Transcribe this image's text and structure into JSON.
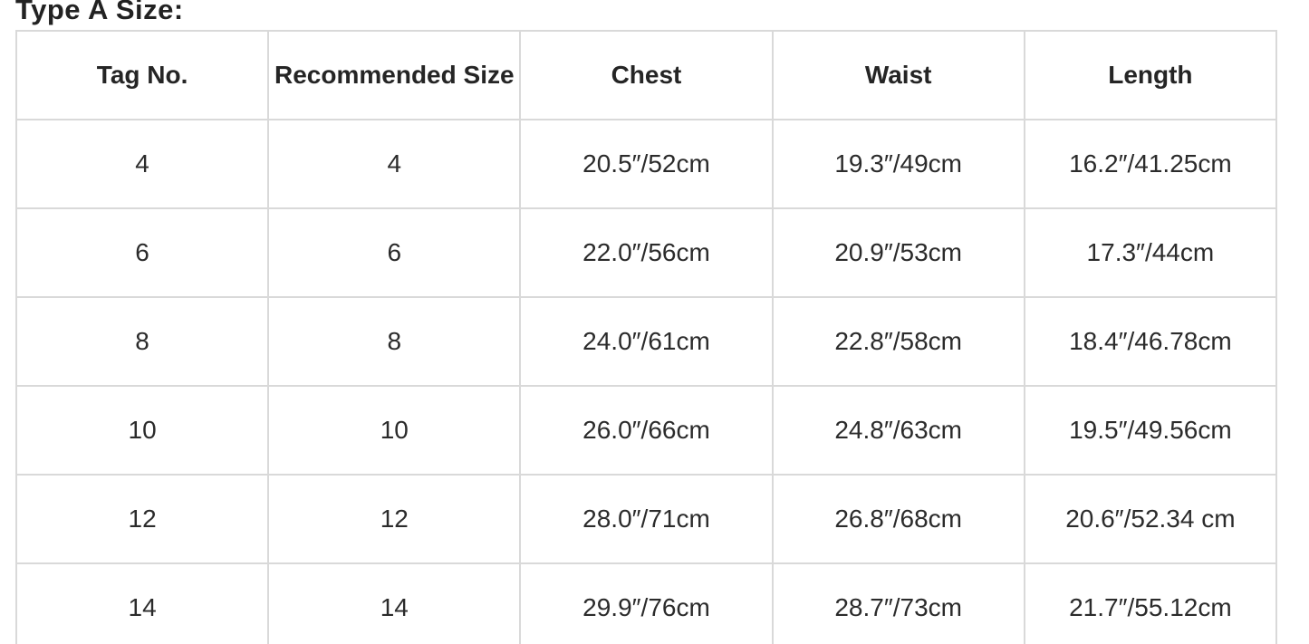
{
  "chart_data": {
    "type": "table",
    "title": "Type A Size:",
    "columns": [
      "Tag No.",
      "Recommended Size",
      "Chest",
      "Waist",
      "Length"
    ],
    "rows": [
      [
        "4",
        "4",
        "20.5″/52cm",
        "19.3″/49cm",
        "16.2″/41.25cm"
      ],
      [
        "6",
        "6",
        "22.0″/56cm",
        "20.9″/53cm",
        "17.3″/44cm"
      ],
      [
        "8",
        "8",
        "24.0″/61cm",
        "22.8″/58cm",
        "18.4″/46.78cm"
      ],
      [
        "10",
        "10",
        "26.0″/66cm",
        "24.8″/63cm",
        "19.5″/49.56cm"
      ],
      [
        "12",
        "12",
        "28.0″/71cm",
        "26.8″/68cm",
        "20.6″/52.34 cm"
      ],
      [
        "14",
        "14",
        "29.9″/76cm",
        "28.7″/73cm",
        "21.7″/55.12cm"
      ]
    ]
  },
  "colors": {
    "text": "#2b2b2b",
    "title_text": "#222222",
    "border": "#d9d9d9",
    "background": "#ffffff"
  }
}
